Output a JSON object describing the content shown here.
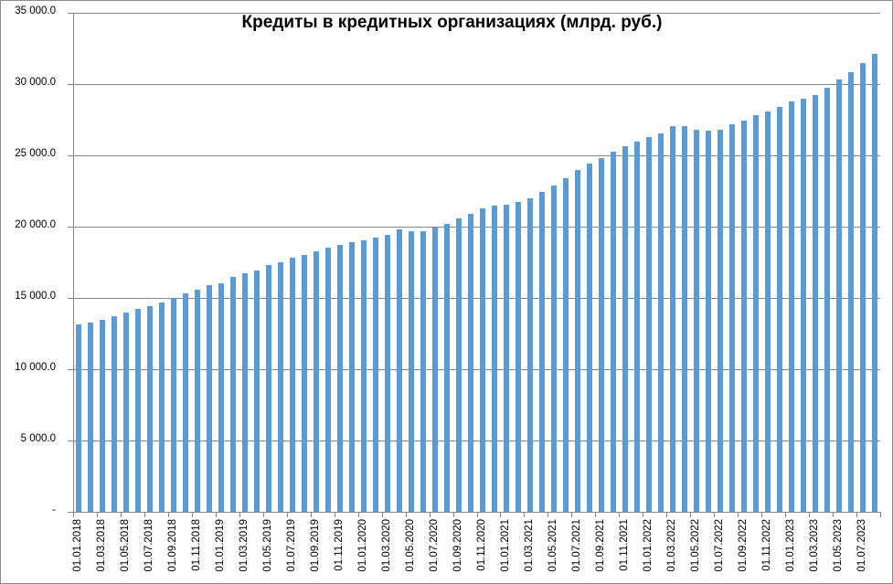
{
  "chart_data": {
    "type": "bar",
    "title": "Кредиты в кредитных организациях (млрд. руб.)",
    "xlabel": "",
    "ylabel": "",
    "ylim": [
      0,
      35000
    ],
    "yticks": [
      0,
      5000,
      10000,
      15000,
      20000,
      25000,
      30000,
      35000
    ],
    "ytick_labels": [
      "-",
      "5 000.0",
      "10 000.0",
      "15 000.0",
      "20 000.0",
      "25 000.0",
      "30 000.0",
      "35 000.0"
    ],
    "grid": true,
    "legend": null,
    "bar_color": "#5b9bd5",
    "x_tick_labels_shown": [
      "01.01.2018",
      "01.03.2018",
      "01.05.2018",
      "01.07.2018",
      "01.09.2018",
      "01.11.2018",
      "01.01.2019",
      "01.03.2019",
      "01.05.2019",
      "01.07.2019",
      "01.09.2019",
      "01.11.2019",
      "01.01.2020",
      "01.03.2020",
      "01.05.2020",
      "01.07.2020",
      "01.09.2020",
      "01.11.2020",
      "01.01.2021",
      "01.03.2021",
      "01.05.2021",
      "01.07.2021",
      "01.09.2021",
      "01.11.2021",
      "01.01.2022",
      "01.03.2022",
      "01.05.2022",
      "01.07.2022",
      "01.09.2022",
      "01.11.2022",
      "01.01.2023",
      "01.03.2023",
      "01.05.2023",
      "01.07.2023"
    ],
    "categories": [
      "01.01.2018",
      "01.02.2018",
      "01.03.2018",
      "01.04.2018",
      "01.05.2018",
      "01.06.2018",
      "01.07.2018",
      "01.08.2018",
      "01.09.2018",
      "01.10.2018",
      "01.11.2018",
      "01.12.2018",
      "01.01.2019",
      "01.02.2019",
      "01.03.2019",
      "01.04.2019",
      "01.05.2019",
      "01.06.2019",
      "01.07.2019",
      "01.08.2019",
      "01.09.2019",
      "01.10.2019",
      "01.11.2019",
      "01.12.2019",
      "01.01.2020",
      "01.02.2020",
      "01.03.2020",
      "01.04.2020",
      "01.05.2020",
      "01.06.2020",
      "01.07.2020",
      "01.08.2020",
      "01.09.2020",
      "01.10.2020",
      "01.11.2020",
      "01.12.2020",
      "01.01.2021",
      "01.02.2021",
      "01.03.2021",
      "01.04.2021",
      "01.05.2021",
      "01.06.2021",
      "01.07.2021",
      "01.08.2021",
      "01.09.2021",
      "01.10.2021",
      "01.11.2021",
      "01.12.2021",
      "01.01.2022",
      "01.02.2022",
      "01.03.2022",
      "01.04.2022",
      "01.05.2022",
      "01.06.2022",
      "01.07.2022",
      "01.08.2022",
      "01.09.2022",
      "01.10.2022",
      "01.11.2022",
      "01.12.2022",
      "01.01.2023",
      "01.02.2023",
      "01.03.2023",
      "01.04.2023",
      "01.05.2023",
      "01.06.2023",
      "01.07.2023",
      "01.08.2023"
    ],
    "values": [
      13150,
      13300,
      13450,
      13700,
      13950,
      14200,
      14450,
      14700,
      15000,
      15300,
      15550,
      15900,
      16050,
      16500,
      16700,
      16950,
      17300,
      17500,
      17800,
      18000,
      18300,
      18500,
      18700,
      18900,
      19050,
      19250,
      19450,
      19800,
      19700,
      19700,
      19950,
      20200,
      20600,
      20900,
      21300,
      21450,
      21550,
      21750,
      22000,
      22450,
      22900,
      23400,
      23950,
      24400,
      24800,
      25250,
      25650,
      25950,
      26300,
      26550,
      27050,
      27050,
      26800,
      26750,
      26800,
      27150,
      27450,
      27850,
      28100,
      28400,
      28800,
      28950,
      29250,
      29750,
      30300,
      30850,
      31500,
      32100
    ]
  }
}
